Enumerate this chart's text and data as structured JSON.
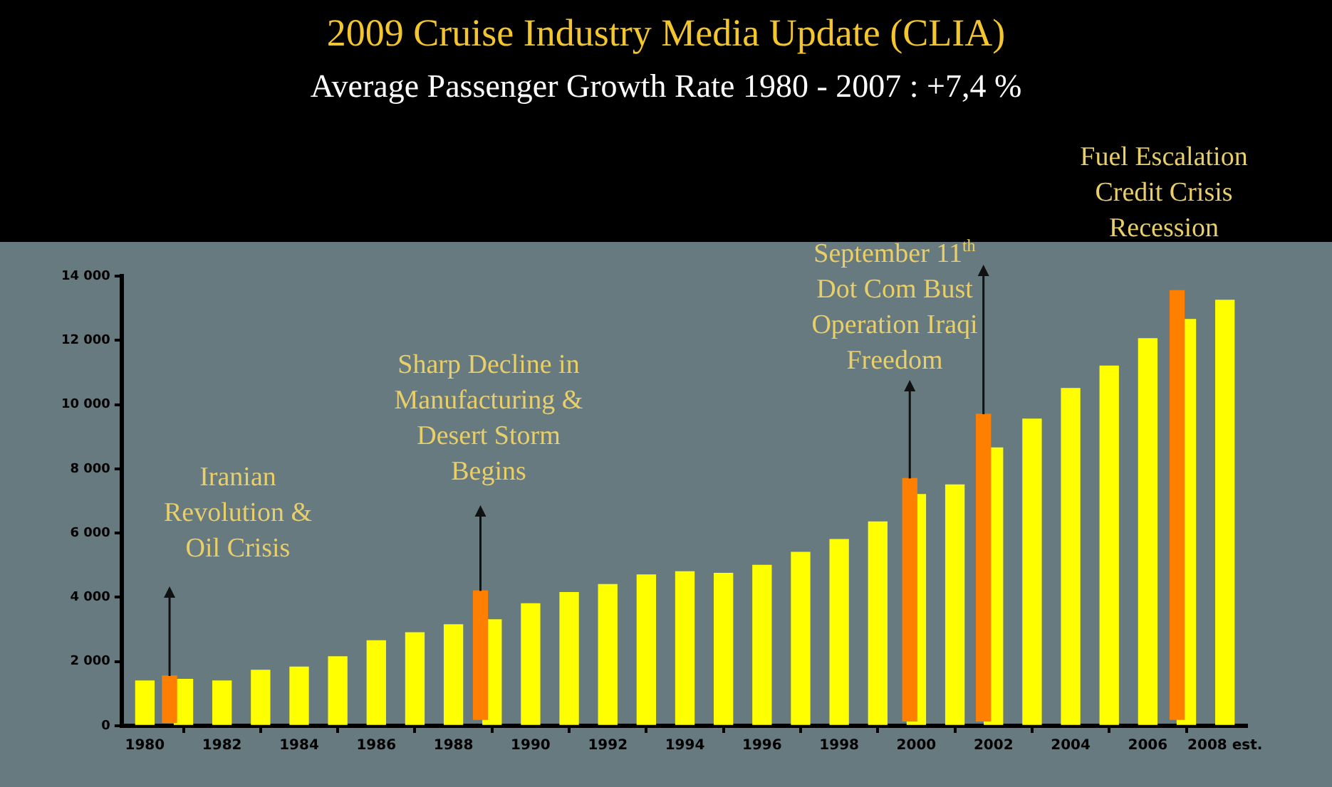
{
  "chart_data": {
    "type": "bar",
    "title": "2009 Cruise Industry Media Update (CLIA)",
    "subtitle": "Average Passenger Growth Rate 1980 - 2007 : +7,4 %",
    "x": [
      1980,
      1981,
      1982,
      1983,
      1984,
      1985,
      1986,
      1987,
      1988,
      1989,
      1990,
      1991,
      1992,
      1993,
      1994,
      1995,
      1996,
      1997,
      1998,
      1999,
      2000,
      2001,
      2002,
      2003,
      2004,
      2005,
      2006,
      2007,
      2008
    ],
    "series": [
      {
        "color": "#ffff00",
        "values": [
          1400,
          1450,
          1400,
          1730,
          1830,
          2150,
          2650,
          2900,
          3150,
          3300,
          3800,
          4150,
          4400,
          4700,
          4800,
          4750,
          5000,
          5400,
          5800,
          6350,
          7200,
          7500,
          8650,
          9550,
          10500,
          11200,
          12050,
          12650,
          13250
        ]
      },
      {
        "color": "#ff7f00",
        "x": [
          1980.64,
          1988.7,
          1999.83,
          2001.74,
          2006.76
        ],
        "base": [
          100,
          200,
          150,
          150,
          200
        ],
        "values": [
          1450,
          4000,
          7550,
          9550,
          13350
        ]
      }
    ],
    "xlim": [
      1979.4,
      2008.56
    ],
    "xticks": [
      1980,
      1982,
      1984,
      1986,
      1988,
      1990,
      1992,
      1994,
      1996,
      1998,
      2000,
      2002,
      2004,
      2006,
      {
        "value": 2008,
        "label": "2008 est."
      }
    ],
    "ylim": [
      0,
      14000
    ],
    "yticks": [
      0,
      {
        "value": 2000,
        "label": "2 000"
      },
      {
        "value": 4000,
        "label": "4 000"
      },
      {
        "value": 6000,
        "label": "6 000"
      },
      {
        "value": 8000,
        "label": "8 000"
      },
      {
        "value": 10000,
        "label": "10 000"
      },
      {
        "value": 12000,
        "label": "12 000"
      },
      {
        "value": 14000,
        "label": "14 000"
      }
    ],
    "annotations": [
      "Iranian\nRevolution &\nOil Crisis",
      "Sharp Decline in\nManufacturing &\nDesert Storm\nBegins",
      "September 11$^{th}$\nDot Com Bust\nOperation Iraqi\nFreedom",
      "Fuel Escalation\nCredit Crisis\nRecession"
    ],
    "grid": false,
    "legend": false
  }
}
